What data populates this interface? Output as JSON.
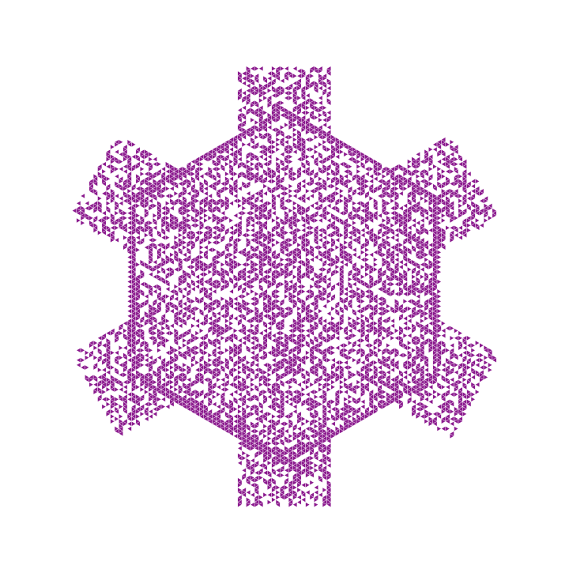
{
  "figure": {
    "kind": "triangular-lattice pattern",
    "shape": "hexagonal body with six rectangular arms (snowflake-like)",
    "fill_color": "#8B1A8E",
    "background": "#ffffff",
    "triangle_density": 0.48,
    "text_labels": []
  }
}
